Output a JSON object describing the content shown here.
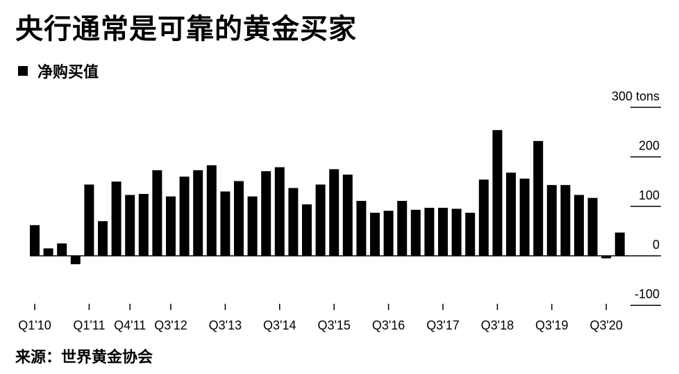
{
  "title": "央行通常是可靠的黄金买家",
  "legend": {
    "label": "净购买值"
  },
  "source": "来源：世界黄金协会",
  "chart_data": {
    "type": "bar",
    "title": "央行通常是可靠的黄金买家",
    "xlabel": "",
    "ylabel": "",
    "unit": "tons",
    "ylim": [
      -100,
      300
    ],
    "yticks": [
      300,
      200,
      100,
      0,
      -100
    ],
    "ytick_labels": [
      "300 tons",
      "200",
      "100",
      "0",
      "-100"
    ],
    "xtick_labels": [
      "Q1'10",
      "Q1'11",
      "Q4'11",
      "Q3'12",
      "Q3'13",
      "Q3'14",
      "Q3'15",
      "Q3'16",
      "Q3'17",
      "Q3'18",
      "Q3'19",
      "Q3'20"
    ],
    "xtick_indices": [
      0,
      4,
      7,
      10,
      14,
      18,
      22,
      26,
      30,
      34,
      38,
      42
    ],
    "series": [
      {
        "name": "净购买值",
        "color": "#000000",
        "values": [
          62,
          15,
          25,
          -17,
          144,
          70,
          150,
          123,
          125,
          173,
          120,
          160,
          173,
          183,
          130,
          151,
          120,
          171,
          179,
          137,
          104,
          144,
          175,
          164,
          111,
          87,
          91,
          111,
          93,
          97,
          97,
          95,
          87,
          154,
          254,
          168,
          156,
          232,
          143,
          143,
          123,
          117,
          -5,
          47
        ]
      }
    ]
  }
}
